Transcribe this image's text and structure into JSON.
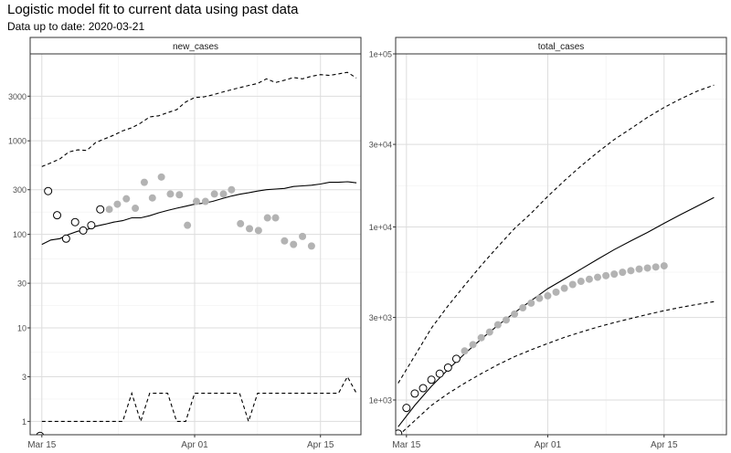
{
  "title": "Logistic model fit to current data using past data",
  "subtitle": "Data up to date: 2020-03-21",
  "chart_data": [
    {
      "type": "scatter",
      "panel": "new_cases",
      "x_ticks": [
        {
          "label": "Mar 15",
          "day": 0
        },
        {
          "label": "Apr 01",
          "day": 17
        },
        {
          "label": "Apr 15",
          "day": 31
        }
      ],
      "x_range": [
        -1.3,
        35.5
      ],
      "y_scale": "log10",
      "y_ticks": [
        {
          "label": "1",
          "value": 1
        },
        {
          "label": "3",
          "value": 3
        },
        {
          "label": "10",
          "value": 10
        },
        {
          "label": "30",
          "value": 30
        },
        {
          "label": "100",
          "value": 100
        },
        {
          "label": "300",
          "value": 300
        },
        {
          "label": "1000",
          "value": 1000
        },
        {
          "label": "3000",
          "value": 3000
        }
      ],
      "y_range": [
        0.72,
        8500
      ],
      "grid": true,
      "series": [
        {
          "kind": "observed",
          "style": "open-circle",
          "x": [
            -0.2,
            0.7,
            1.7,
            2.7,
            3.7,
            4.6,
            5.5,
            6.5
          ],
          "y": [
            0.7,
            290,
            160,
            90,
            135,
            110,
            125,
            185
          ]
        },
        {
          "kind": "subsequent",
          "style": "grey-dot",
          "x": [
            7.5,
            8.4,
            9.4,
            10.4,
            11.4,
            12.3,
            13.3,
            14.3,
            15.3,
            16.2,
            17.2,
            18.2,
            19.2,
            20.2,
            21.1,
            22.1,
            23.1,
            24.1,
            25.1,
            26.0,
            27.0,
            28.0,
            29.0,
            30.0,
            31.0
          ],
          "y": [
            185,
            210,
            240,
            190,
            360,
            245,
            410,
            270,
            265,
            125,
            225,
            225,
            270,
            270,
            300,
            130,
            115,
            110,
            150,
            150,
            85,
            78,
            95,
            75,
            0
          ]
        },
        {
          "kind": "fit",
          "style": "solid",
          "x": [
            0,
            1,
            2,
            3,
            4,
            5,
            6,
            7,
            8,
            9,
            10,
            11,
            12,
            13,
            14,
            15,
            16,
            17,
            18,
            19,
            20,
            21,
            22,
            23,
            24,
            25,
            26,
            27,
            28,
            29,
            30,
            31,
            32,
            33,
            34,
            35
          ],
          "y": [
            78,
            87,
            90,
            100,
            108,
            112,
            122,
            128,
            135,
            140,
            150,
            150,
            158,
            170,
            180,
            190,
            200,
            210,
            215,
            225,
            240,
            255,
            268,
            278,
            290,
            300,
            305,
            310,
            325,
            330,
            335,
            345,
            360,
            360,
            365,
            355
          ]
        },
        {
          "kind": "upper-bound",
          "style": "dashed",
          "x": [
            0,
            1,
            2,
            3,
            4,
            5,
            6,
            7,
            8,
            9,
            10,
            11,
            12,
            13,
            14,
            15,
            16,
            17,
            18,
            19,
            20,
            21,
            22,
            23,
            24,
            25,
            26,
            27,
            28,
            29,
            30,
            31,
            32,
            33,
            34,
            35
          ],
          "y": [
            530,
            580,
            640,
            760,
            800,
            790,
            960,
            1050,
            1150,
            1280,
            1380,
            1550,
            1800,
            1850,
            2000,
            2150,
            2600,
            2900,
            2950,
            3100,
            3300,
            3500,
            3700,
            3900,
            4100,
            4600,
            4200,
            4450,
            4750,
            4600,
            4900,
            5100,
            5000,
            5200,
            5400,
            4700
          ]
        },
        {
          "kind": "lower-bound",
          "style": "dashed",
          "x": [
            0,
            1,
            2,
            3,
            4,
            5,
            6,
            7,
            8,
            9,
            10,
            11,
            12,
            13,
            14,
            15,
            16,
            17,
            18,
            19,
            20,
            21,
            22,
            23,
            24,
            25,
            26,
            27,
            28,
            29,
            30,
            31,
            32,
            33,
            34,
            35
          ],
          "y": [
            1,
            1,
            1,
            1,
            1,
            1,
            1,
            1,
            1,
            1,
            2,
            1,
            2,
            2,
            2,
            1,
            1,
            2,
            2,
            2,
            2,
            2,
            2,
            1,
            2,
            2,
            2,
            2,
            2,
            2,
            2,
            2,
            2,
            2,
            3,
            2
          ]
        }
      ]
    },
    {
      "type": "scatter",
      "panel": "total_cases",
      "x_ticks": [
        {
          "label": "Mar 15",
          "day": 0
        },
        {
          "label": "Apr 01",
          "day": 17
        },
        {
          "label": "Apr 15",
          "day": 31
        }
      ],
      "x_range": [
        -1.3,
        38.5
      ],
      "y_scale": "log10",
      "y_ticks": [
        {
          "label": "1e+03",
          "value": 1000
        },
        {
          "label": "3e+03",
          "value": 3000
        },
        {
          "label": "1e+04",
          "value": 10000
        },
        {
          "label": "3e+04",
          "value": 30000
        },
        {
          "label": "1e+05",
          "value": 100000
        }
      ],
      "y_range": [
        630,
        100000
      ],
      "grid": true,
      "series": [
        {
          "kind": "observed",
          "style": "open-circle",
          "x": [
            -1.0,
            0,
            1,
            2,
            3,
            4,
            5,
            6
          ],
          "y": [
            640,
            900,
            1090,
            1170,
            1310,
            1420,
            1540,
            1730
          ]
        },
        {
          "kind": "subsequent",
          "style": "grey-dot",
          "x": [
            7,
            8,
            9,
            10,
            11,
            12,
            13,
            14,
            15,
            16,
            17,
            18,
            19,
            20,
            21,
            22,
            23,
            24,
            25,
            26,
            27,
            28,
            29,
            30,
            31
          ],
          "y": [
            1920,
            2090,
            2290,
            2470,
            2720,
            2900,
            3140,
            3410,
            3630,
            3870,
            4000,
            4200,
            4420,
            4650,
            4850,
            4990,
            5120,
            5230,
            5340,
            5470,
            5590,
            5710,
            5790,
            5870,
            5960
          ]
        },
        {
          "kind": "fit",
          "style": "solid",
          "x": [
            -1,
            1,
            3,
            5,
            7,
            9,
            11,
            13,
            15,
            17,
            19,
            21,
            23,
            25,
            27,
            29,
            31,
            33,
            35,
            37
          ],
          "y": [
            700,
            930,
            1200,
            1500,
            1850,
            2250,
            2700,
            3200,
            3750,
            4400,
            5000,
            5700,
            6500,
            7400,
            8300,
            9300,
            10500,
            11800,
            13200,
            14800
          ]
        },
        {
          "kind": "upper-bound",
          "style": "dashed",
          "x": [
            -1,
            1,
            3,
            5,
            7,
            9,
            11,
            13,
            15,
            17,
            19,
            21,
            23,
            25,
            27,
            29,
            31,
            33,
            35,
            37
          ],
          "y": [
            1250,
            1800,
            2600,
            3500,
            4600,
            6000,
            7700,
            9800,
            12000,
            15000,
            18500,
            22500,
            27000,
            32000,
            37000,
            43000,
            49000,
            55000,
            61000,
            66000
          ]
        },
        {
          "kind": "lower-bound",
          "style": "dashed",
          "x": [
            -1,
            1,
            3,
            5,
            7,
            9,
            11,
            13,
            15,
            17,
            19,
            21,
            23,
            25,
            27,
            29,
            31,
            33,
            35,
            37
          ],
          "y": [
            620,
            760,
            930,
            1090,
            1250,
            1420,
            1600,
            1780,
            1950,
            2120,
            2300,
            2470,
            2640,
            2800,
            2960,
            3120,
            3280,
            3430,
            3570,
            3700
          ]
        }
      ]
    }
  ],
  "panels": [
    {
      "strip_label": "new_cases"
    },
    {
      "strip_label": "total_cases"
    }
  ]
}
